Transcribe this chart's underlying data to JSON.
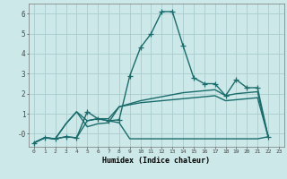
{
  "title": "",
  "xlabel": "Humidex (Indice chaleur)",
  "background_color": "#cce8e8",
  "grid_color": "#aacccc",
  "line_color": "#1a6b6b",
  "xlim": [
    -0.5,
    23.5
  ],
  "ylim": [
    -0.65,
    6.5
  ],
  "xticks": [
    0,
    1,
    2,
    3,
    4,
    5,
    6,
    7,
    8,
    9,
    10,
    11,
    12,
    13,
    14,
    15,
    16,
    17,
    18,
    19,
    20,
    21,
    22,
    23
  ],
  "yticks": [
    0,
    1,
    2,
    3,
    4,
    5,
    6
  ],
  "ytick_labels": [
    "-0",
    "1",
    "2",
    "3",
    "4",
    "5",
    "6"
  ],
  "series": [
    {
      "x": [
        0,
        1,
        2,
        3,
        4,
        5,
        6,
        7,
        8,
        9,
        10,
        11,
        12,
        13,
        14,
        15,
        16,
        17,
        18,
        19,
        20,
        21,
        22
      ],
      "y": [
        -0.45,
        -0.2,
        -0.25,
        -0.15,
        -0.2,
        1.1,
        0.75,
        0.65,
        0.7,
        2.9,
        4.3,
        5.0,
        6.1,
        6.1,
        4.4,
        2.8,
        2.5,
        2.5,
        1.9,
        2.7,
        2.3,
        2.3,
        -0.15
      ],
      "marker": "+",
      "marker_size": 4,
      "linewidth": 1.0
    },
    {
      "x": [
        0,
        1,
        2,
        3,
        4,
        5,
        6,
        7,
        8,
        9,
        10,
        11,
        12,
        13,
        14,
        15,
        16,
        17,
        18,
        19,
        20,
        21,
        22
      ],
      "y": [
        -0.45,
        -0.2,
        -0.25,
        0.5,
        1.1,
        0.65,
        0.75,
        0.75,
        1.35,
        1.5,
        1.65,
        1.75,
        1.85,
        1.95,
        2.05,
        2.1,
        2.15,
        2.2,
        1.9,
        2.0,
        2.05,
        2.1,
        -0.15
      ],
      "marker": null,
      "linewidth": 1.0
    },
    {
      "x": [
        0,
        1,
        2,
        3,
        4,
        5,
        6,
        7,
        8,
        9,
        10,
        11,
        12,
        13,
        14,
        15,
        16,
        17,
        18,
        19,
        20,
        21,
        22
      ],
      "y": [
        -0.45,
        -0.2,
        -0.25,
        0.5,
        1.1,
        0.35,
        0.5,
        0.55,
        1.35,
        1.45,
        1.55,
        1.6,
        1.65,
        1.7,
        1.75,
        1.8,
        1.85,
        1.9,
        1.65,
        1.7,
        1.75,
        1.8,
        -0.15
      ],
      "marker": null,
      "linewidth": 1.0
    },
    {
      "x": [
        0,
        1,
        2,
        3,
        4,
        5,
        6,
        7,
        8,
        9,
        10,
        11,
        12,
        13,
        14,
        15,
        16,
        17,
        18,
        19,
        20,
        21,
        22
      ],
      "y": [
        -0.45,
        -0.2,
        -0.25,
        -0.15,
        -0.2,
        0.65,
        0.75,
        0.65,
        0.55,
        -0.25,
        -0.25,
        -0.25,
        -0.25,
        -0.25,
        -0.25,
        -0.25,
        -0.25,
        -0.25,
        -0.25,
        -0.25,
        -0.25,
        -0.25,
        -0.15
      ],
      "marker": null,
      "linewidth": 1.0
    }
  ]
}
